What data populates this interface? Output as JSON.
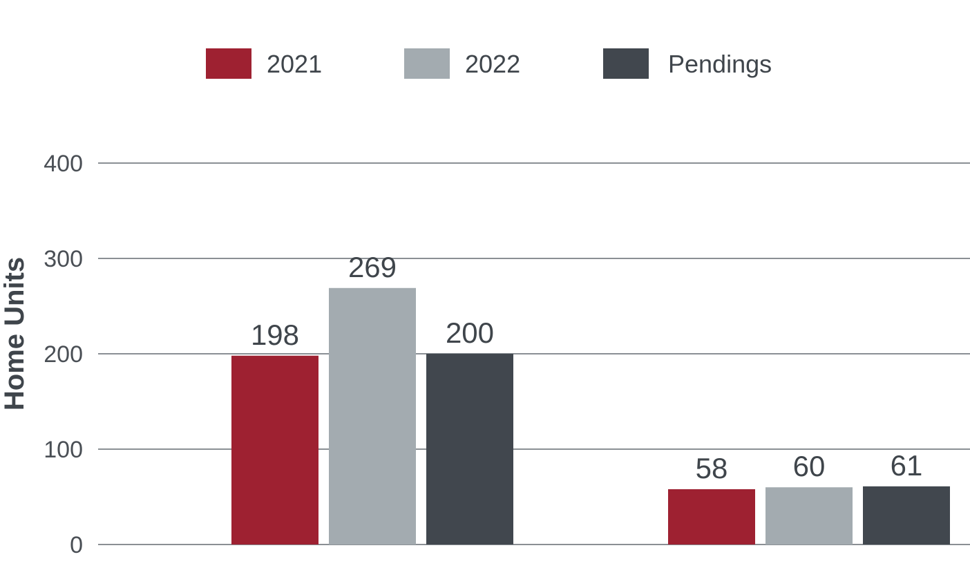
{
  "chart_data": {
    "type": "bar",
    "title": "",
    "xlabel": "",
    "ylabel": "Home Units",
    "ylim": [
      0,
      400
    ],
    "yticks": [
      0,
      100,
      200,
      300,
      400
    ],
    "categories": [
      "",
      ""
    ],
    "grid": true,
    "legend_position": "top",
    "series": [
      {
        "name": "2021",
        "color": "#9e2131",
        "values": [
          198,
          58
        ]
      },
      {
        "name": "2022",
        "color": "#a3abb0",
        "values": [
          269,
          60
        ]
      },
      {
        "name": "Pendings",
        "color": "#41474e",
        "values": [
          200,
          61
        ]
      }
    ]
  }
}
